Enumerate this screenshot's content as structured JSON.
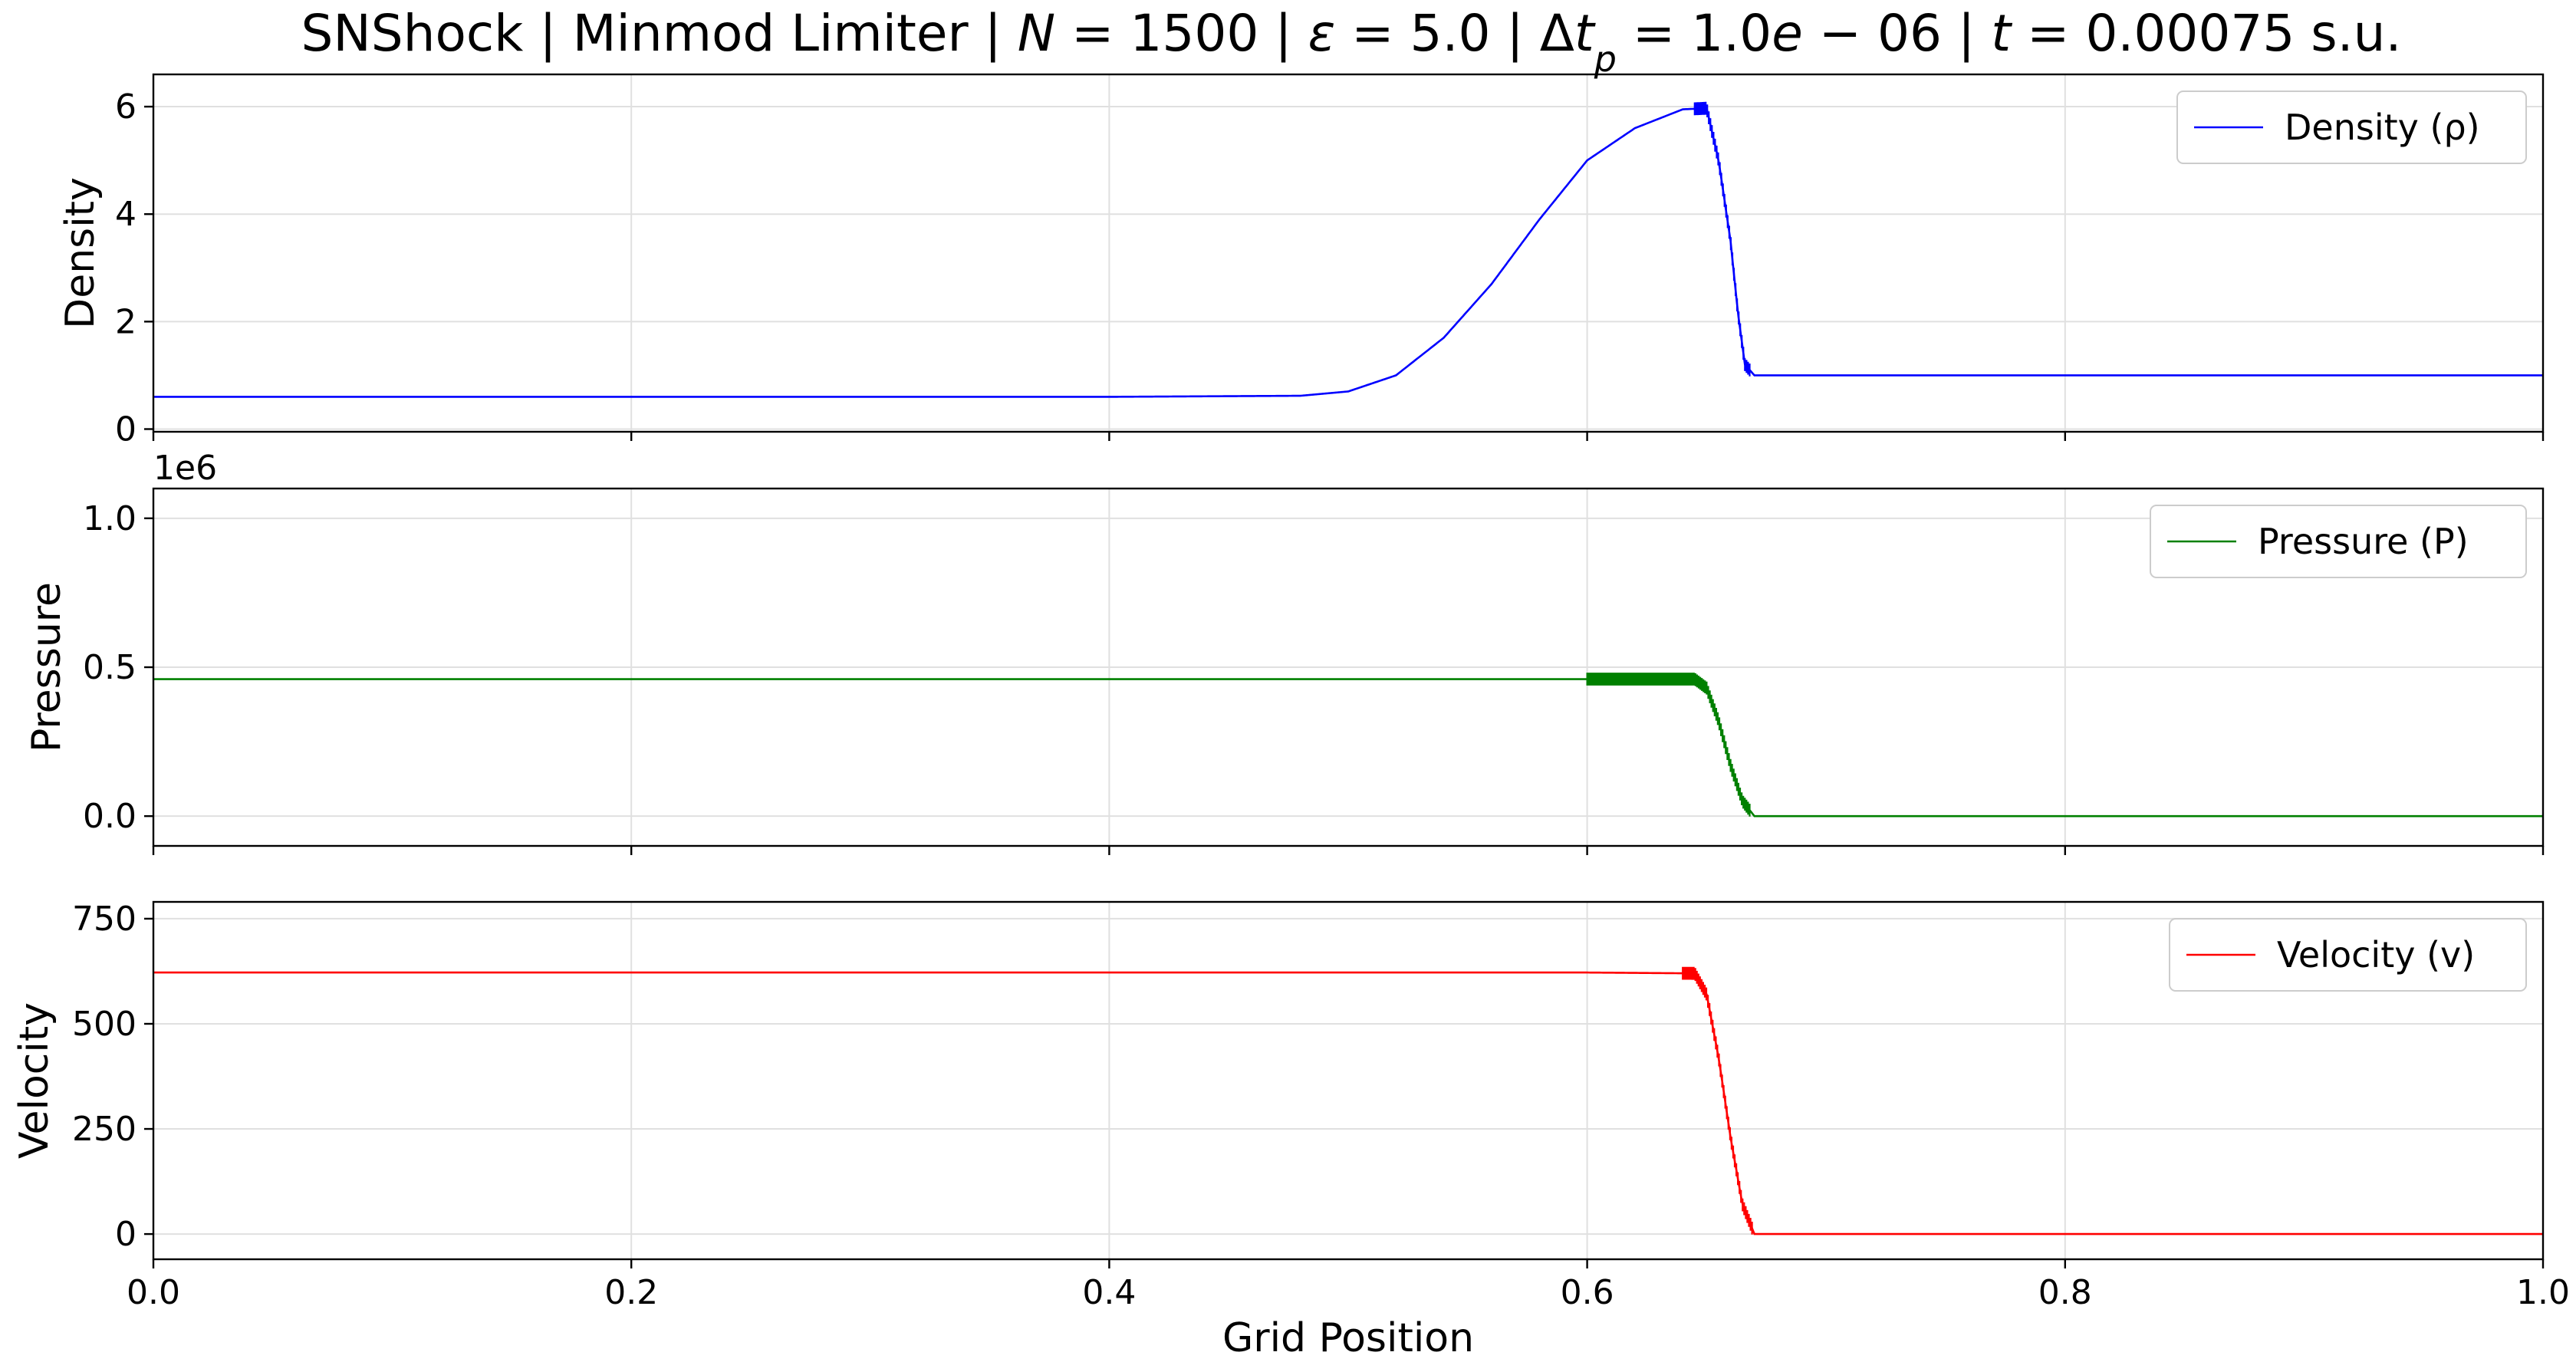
{
  "chart_data": [
    {
      "type": "line",
      "title": "SNShock | Minmod Limiter | N = 1500 | ε = 5.0 | Δt_p = 1.0e−06 | t = 0.00075 s.u.",
      "title_display": {
        "parts": [
          {
            "t": "SNShock | Minmod Limiter | "
          },
          {
            "t": "N",
            "i": true
          },
          {
            "t": " = 1500 | "
          },
          {
            "t": "ε",
            "i": true
          },
          {
            "t": " = 5.0 | Δ"
          },
          {
            "t": "t",
            "i": true
          },
          {
            "t": "p",
            "i": true,
            "sub": true
          },
          {
            "t": " = 1.0"
          },
          {
            "t": "e",
            "i": true
          },
          {
            "t": " − 06 | "
          },
          {
            "t": "t",
            "i": true
          },
          {
            "t": " = 0.00075 s.u."
          }
        ]
      },
      "xlabel": "",
      "ylabel": "Density",
      "xlim": [
        0,
        1
      ],
      "ylim": [
        -0.05,
        6.6
      ],
      "xticks": [
        "0.0",
        "0.2",
        "0.4",
        "0.6",
        "0.8",
        "1.0"
      ],
      "xtick_values": [
        0,
        0.2,
        0.4,
        0.6,
        0.8,
        1.0
      ],
      "show_xtick_labels": false,
      "yticks": [
        "0",
        "2",
        "4",
        "6"
      ],
      "ytick_values": [
        0,
        2,
        4,
        6
      ],
      "offset_text": "",
      "grid": true,
      "legend": "top-right",
      "series": [
        {
          "name": "Density (ρ)",
          "color": "#0000ff",
          "x": [
            0.0,
            0.2,
            0.4,
            0.48,
            0.5,
            0.52,
            0.54,
            0.56,
            0.58,
            0.6,
            0.62,
            0.64,
            0.65,
            0.655,
            0.66,
            0.663,
            0.666,
            0.67,
            0.7,
            0.8,
            1.0
          ],
          "y": [
            0.6,
            0.6,
            0.6,
            0.62,
            0.7,
            1.0,
            1.7,
            2.7,
            3.9,
            5.0,
            5.6,
            5.95,
            5.97,
            5.0,
            3.5,
            2.2,
            1.2,
            1.0,
            1.0,
            1.0,
            1.0
          ],
          "oscillation_band": [
            0.645,
            0.668
          ]
        }
      ]
    },
    {
      "type": "line",
      "xlabel": "",
      "ylabel": "Pressure",
      "xlim": [
        0,
        1
      ],
      "ylim": [
        -0.1,
        1.1
      ],
      "xticks": [
        "0.0",
        "0.2",
        "0.4",
        "0.6",
        "0.8",
        "1.0"
      ],
      "xtick_values": [
        0,
        0.2,
        0.4,
        0.6,
        0.8,
        1.0
      ],
      "show_xtick_labels": false,
      "yticks": [
        "0.0",
        "0.5",
        "1.0"
      ],
      "ytick_values": [
        0.0,
        0.5,
        1.0
      ],
      "offset_text": "1e6",
      "grid": true,
      "legend": "top-right",
      "series": [
        {
          "name": "Pressure (P)",
          "color": "#008000",
          "x": [
            0.0,
            0.2,
            0.4,
            0.6,
            0.645,
            0.65,
            0.655,
            0.66,
            0.665,
            0.67,
            0.7,
            0.8,
            1.0
          ],
          "y": [
            0.46,
            0.46,
            0.46,
            0.46,
            0.46,
            0.43,
            0.32,
            0.17,
            0.05,
            0.0,
            0.0,
            0.0,
            0.0
          ],
          "oscillation_band": [
            0.6,
            0.668
          ]
        }
      ]
    },
    {
      "type": "line",
      "xlabel": "Grid Position",
      "ylabel": "Velocity",
      "xlim": [
        0,
        1
      ],
      "ylim": [
        -60,
        790
      ],
      "xticks": [
        "0.0",
        "0.2",
        "0.4",
        "0.6",
        "0.8",
        "1.0"
      ],
      "xtick_values": [
        0,
        0.2,
        0.4,
        0.6,
        0.8,
        1.0
      ],
      "show_xtick_labels": true,
      "yticks": [
        "0",
        "250",
        "500",
        "750"
      ],
      "ytick_values": [
        0,
        250,
        500,
        750
      ],
      "offset_text": "",
      "grid": true,
      "legend": "top-right",
      "series": [
        {
          "name": "Velocity (v)",
          "color": "#ff0000",
          "x": [
            0.0,
            0.2,
            0.4,
            0.6,
            0.645,
            0.65,
            0.655,
            0.66,
            0.665,
            0.67,
            0.7,
            0.8,
            1.0
          ],
          "y": [
            622,
            622,
            622,
            622,
            620,
            570,
            420,
            230,
            70,
            0,
            0,
            0,
            0
          ],
          "oscillation_band": [
            0.64,
            0.669
          ]
        }
      ]
    }
  ]
}
